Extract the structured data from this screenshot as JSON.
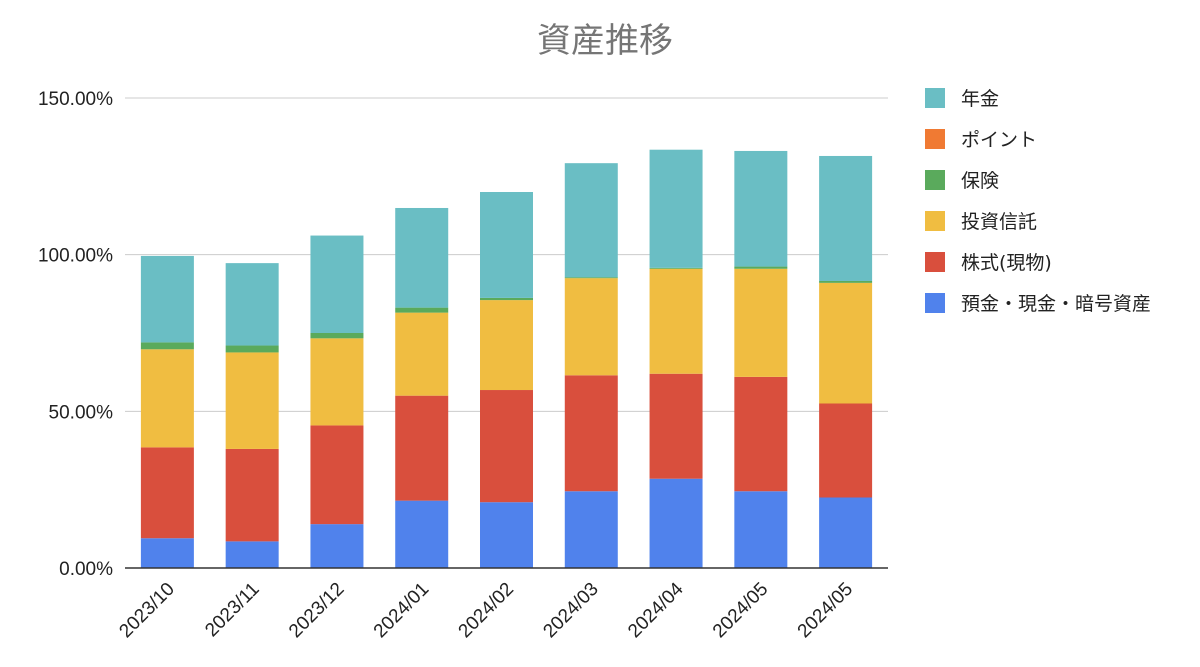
{
  "chart_data": {
    "type": "bar",
    "stacked": true,
    "title": "資産推移",
    "xlabel": "",
    "ylabel": "",
    "ylim": [
      0,
      150
    ],
    "yticks": [
      "0.00%",
      "50.00%",
      "100.00%",
      "150.00%"
    ],
    "grid": true,
    "legend_position": "right",
    "categories": [
      "2023/10",
      "2023/11",
      "2023/12",
      "2024/01",
      "2024/02",
      "2024/03",
      "2024/04",
      "2024/05",
      "2024/05"
    ],
    "series": [
      {
        "name": "預金・現金・暗号資産",
        "color": "#5082EC",
        "values": [
          9.5,
          8.5,
          14,
          21.5,
          21,
          24.5,
          28.5,
          24.5,
          22.5
        ]
      },
      {
        "name": "株式(現物)",
        "color": "#D94F3D",
        "values": [
          29,
          29.5,
          31.5,
          33.5,
          35.8,
          37,
          33.5,
          36.5,
          30
        ]
      },
      {
        "name": "投資信託",
        "color": "#F0BD41",
        "values": [
          31.3,
          30.8,
          27.8,
          26.5,
          28.7,
          31,
          33.5,
          34.5,
          38.5
        ]
      },
      {
        "name": "保険",
        "color": "#5AAA5C",
        "values": [
          2.2,
          2.2,
          1.7,
          1.6,
          0.7,
          0.3,
          0.3,
          0.7,
          0.6
        ]
      },
      {
        "name": "ポイント",
        "color": "#F07A33",
        "values": [
          0,
          0,
          0,
          0,
          0,
          0,
          0,
          0,
          0
        ]
      },
      {
        "name": "年金",
        "color": "#6ABEC4",
        "values": [
          27.6,
          26.3,
          31.1,
          31.8,
          33.8,
          36.4,
          37.7,
          36.9,
          39.9
        ]
      }
    ],
    "legend_order": [
      "年金",
      "ポイント",
      "保険",
      "投資信託",
      "株式(現物)",
      "預金・現金・暗号資産"
    ]
  }
}
